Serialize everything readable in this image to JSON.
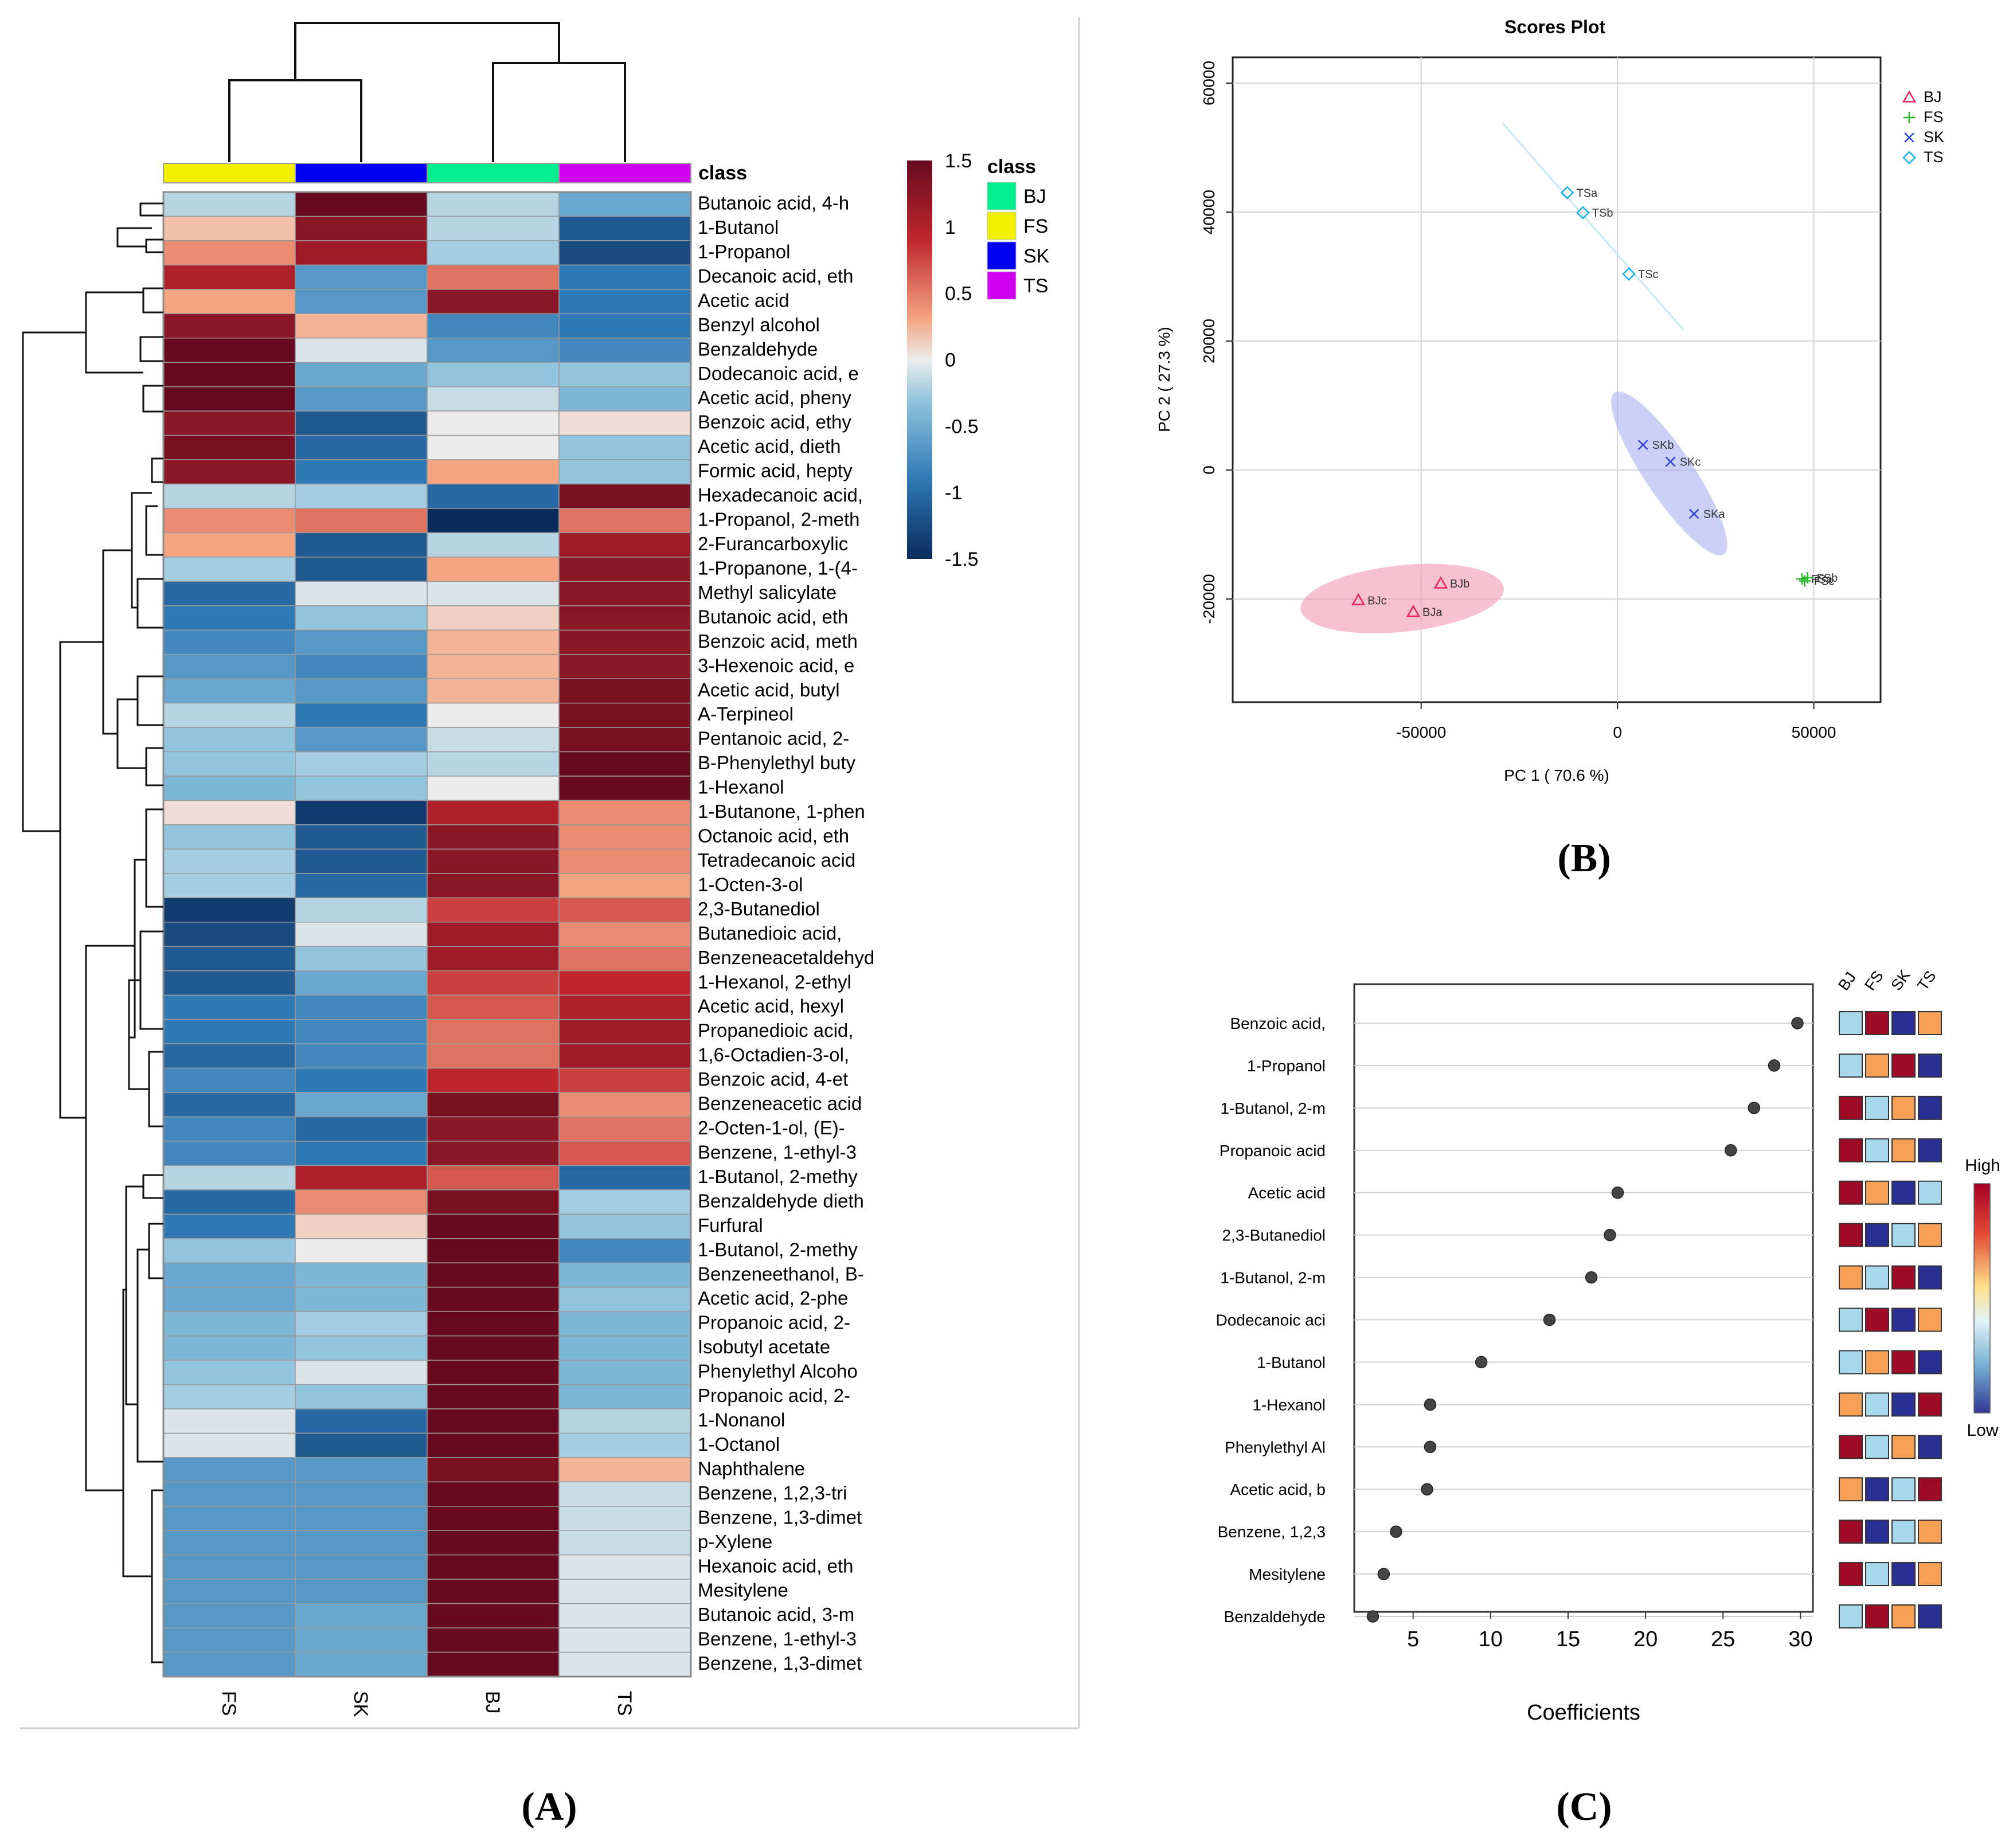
{
  "panel_labels": {
    "a": "(A)",
    "b": "(B)",
    "c": "(C)"
  },
  "colors": {
    "BJ": "#00f08f",
    "FS": "#f0f000",
    "SK": "#0000f0",
    "TS": "#d000f0",
    "pca_BJ": "#e8235a",
    "pca_FS": "#28b828",
    "pca_SK": "#3040d8",
    "pca_TS": "#18b0e8",
    "ellipse_BJ": "#f4a0b8",
    "ellipse_SK": "#a8b0f0",
    "lolli_high": "#9e0b26",
    "lolli_mid_high": "#f5a055",
    "lolli_mid_low": "#a8d8ec",
    "lolli_low": "#2a2f94",
    "dot": "#444444"
  },
  "chart_data": [
    {
      "type": "heatmap",
      "title": "",
      "columns": [
        "FS",
        "SK",
        "BJ",
        "TS"
      ],
      "class_label": "class",
      "class_legend": [
        {
          "name": "BJ",
          "color": "#00f08f"
        },
        {
          "name": "FS",
          "color": "#f0f000"
        },
        {
          "name": "SK",
          "color": "#0000f0"
        },
        {
          "name": "TS",
          "color": "#d000f0"
        }
      ],
      "scale_ticks": [
        "1.5",
        "1",
        "0.5",
        "0",
        "-0.5",
        "-1",
        "-1.5"
      ],
      "scale_range": [
        -1.5,
        1.5
      ],
      "rows": [
        "Butanoic acid, 4-h",
        "1-Butanol",
        "1-Propanol",
        "Decanoic acid, eth",
        "Acetic acid",
        "Benzyl alcohol",
        "Benzaldehyde",
        "Dodecanoic acid, e",
        "Acetic acid, pheny",
        "Benzoic acid, ethy",
        "Acetic acid, dieth",
        "Formic acid, hepty",
        "Hexadecanoic acid,",
        "1-Propanol, 2-meth",
        "2-Furancarboxylic",
        "1-Propanone, 1-(4-",
        "Methyl salicylate",
        "Butanoic acid, eth",
        "Benzoic acid, meth",
        "3-Hexenoic acid, e",
        "Acetic acid, butyl",
        "A-Terpineol",
        "Pentanoic acid, 2-",
        "B-Phenylethyl buty",
        "1-Hexanol",
        "1-Butanone, 1-phen",
        "Octanoic acid, eth",
        "Tetradecanoic acid",
        "1-Octen-3-ol",
        "2,3-Butanediol",
        "Butanedioic acid,",
        "Benzeneacetaldehyd",
        "1-Hexanol, 2-ethyl",
        "Acetic acid, hexyl",
        "Propanedioic acid,",
        "1,6-Octadien-3-ol,",
        "Benzoic acid, 4-et",
        "Benzeneacetic acid",
        "2-Octen-1-ol, (E)-",
        "Benzene, 1-ethyl-3",
        "1-Butanol, 2-methy",
        "Benzaldehyde dieth",
        "Furfural",
        "1-Butanol, 2-methy",
        "Benzeneethanol, B-",
        "Acetic acid, 2-phe",
        "Propanoic acid, 2-",
        "Isobutyl acetate",
        "Phenylethyl Alcoho",
        "Propanoic acid, 2-",
        "1-Nonanol",
        "1-Octanol",
        "Naphthalene",
        "Benzene, 1,2,3-tri",
        "Benzene, 1,3-dimet",
        "p-Xylene",
        "Hexanoic acid, eth",
        "Mesitylene",
        "Butanoic acid, 3-m",
        "Benzene, 1-ethyl-3",
        "Benzene, 1,3-dimet"
      ],
      "values": [
        [
          -0.3,
          1.5,
          -0.3,
          -0.7
        ],
        [
          0.3,
          1.3,
          -0.3,
          -1.2
        ],
        [
          0.6,
          1.2,
          -0.4,
          -1.3
        ],
        [
          1.1,
          -0.8,
          0.7,
          -1.0
        ],
        [
          0.5,
          -0.8,
          1.3,
          -1.0
        ],
        [
          1.3,
          0.4,
          -0.9,
          -1.0
        ],
        [
          1.5,
          -0.1,
          -0.8,
          -0.9
        ],
        [
          1.5,
          -0.7,
          -0.5,
          -0.5
        ],
        [
          1.5,
          -0.8,
          -0.2,
          -0.6
        ],
        [
          1.3,
          -1.2,
          0.0,
          0.1
        ],
        [
          1.4,
          -1.1,
          0.0,
          -0.5
        ],
        [
          1.3,
          -1.0,
          0.5,
          -0.5
        ],
        [
          -0.3,
          -0.4,
          -1.1,
          1.4
        ],
        [
          0.6,
          0.7,
          -1.5,
          0.7
        ],
        [
          0.5,
          -1.2,
          -0.3,
          1.2
        ],
        [
          -0.4,
          -1.2,
          0.5,
          1.3
        ],
        [
          -1.1,
          -0.1,
          -0.1,
          1.3
        ],
        [
          -1.0,
          -0.5,
          0.2,
          1.3
        ],
        [
          -0.9,
          -0.8,
          0.4,
          1.3
        ],
        [
          -0.8,
          -0.9,
          0.4,
          1.3
        ],
        [
          -0.7,
          -0.8,
          0.4,
          1.4
        ],
        [
          -0.3,
          -1.0,
          0.0,
          1.4
        ],
        [
          -0.5,
          -0.8,
          -0.2,
          1.4
        ],
        [
          -0.5,
          -0.4,
          -0.3,
          1.5
        ],
        [
          -0.6,
          -0.5,
          0.0,
          1.5
        ],
        [
          0.1,
          -1.4,
          1.1,
          0.6
        ],
        [
          -0.5,
          -1.2,
          1.3,
          0.6
        ],
        [
          -0.4,
          -1.2,
          1.3,
          0.6
        ],
        [
          -0.4,
          -1.1,
          1.3,
          0.5
        ],
        [
          -1.4,
          -0.3,
          0.9,
          0.8
        ],
        [
          -1.3,
          -0.1,
          1.2,
          0.6
        ],
        [
          -1.2,
          -0.5,
          1.2,
          0.7
        ],
        [
          -1.2,
          -0.7,
          0.9,
          1.0
        ],
        [
          -1.0,
          -0.9,
          0.8,
          1.1
        ],
        [
          -1.0,
          -0.9,
          0.7,
          1.2
        ],
        [
          -1.1,
          -0.9,
          0.7,
          1.2
        ],
        [
          -0.9,
          -1.0,
          1.0,
          0.9
        ],
        [
          -1.1,
          -0.7,
          1.4,
          0.6
        ],
        [
          -0.9,
          -1.1,
          1.3,
          0.7
        ],
        [
          -0.9,
          -1.0,
          1.3,
          0.8
        ],
        [
          -0.3,
          1.1,
          0.8,
          -1.1
        ],
        [
          -1.1,
          0.6,
          1.4,
          -0.4
        ],
        [
          -1.0,
          0.2,
          1.5,
          -0.5
        ],
        [
          -0.5,
          0.0,
          1.5,
          -0.9
        ],
        [
          -0.7,
          -0.6,
          1.5,
          -0.6
        ],
        [
          -0.7,
          -0.6,
          1.5,
          -0.5
        ],
        [
          -0.6,
          -0.4,
          1.5,
          -0.6
        ],
        [
          -0.6,
          -0.5,
          1.5,
          -0.6
        ],
        [
          -0.5,
          -0.1,
          1.5,
          -0.6
        ],
        [
          -0.4,
          -0.5,
          1.5,
          -0.6
        ],
        [
          -0.1,
          -1.1,
          1.5,
          -0.3
        ],
        [
          -0.1,
          -1.2,
          1.5,
          -0.4
        ],
        [
          -0.8,
          -0.8,
          1.4,
          0.4
        ],
        [
          -0.8,
          -0.8,
          1.5,
          -0.2
        ],
        [
          -0.8,
          -0.8,
          1.5,
          -0.2
        ],
        [
          -0.8,
          -0.8,
          1.5,
          -0.2
        ],
        [
          -0.8,
          -0.8,
          1.5,
          -0.1
        ],
        [
          -0.8,
          -0.8,
          1.5,
          -0.1
        ],
        [
          -0.8,
          -0.7,
          1.5,
          -0.1
        ],
        [
          -0.8,
          -0.7,
          1.5,
          -0.1
        ],
        [
          -0.8,
          -0.7,
          1.5,
          -0.1
        ]
      ]
    },
    {
      "type": "scatter",
      "title": "Scores Plot",
      "xlabel": "PC 1 ( 70.6 %)",
      "ylabel": "PC 2 ( 27.3 %)",
      "xlim": [
        -98000,
        67000
      ],
      "ylim": [
        -36000,
        64000
      ],
      "x_ticks": [
        -50000,
        0,
        50000
      ],
      "x_tick_labels": [
        "-50000",
        "0",
        "50000"
      ],
      "y_ticks": [
        -20000,
        0,
        20000,
        40000,
        60000
      ],
      "y_tick_labels": [
        "-20000",
        "0",
        "20000",
        "40000",
        "60000"
      ],
      "legend": [
        {
          "name": "BJ",
          "marker": "triangle",
          "color": "#e8235a"
        },
        {
          "name": "FS",
          "marker": "plus",
          "color": "#28b828"
        },
        {
          "name": "SK",
          "marker": "x",
          "color": "#3040d8"
        },
        {
          "name": "TS",
          "marker": "diamond",
          "color": "#18b0e8"
        }
      ],
      "points": [
        {
          "label": "BJa",
          "group": "BJ",
          "x": -52000,
          "y": -22000
        },
        {
          "label": "BJb",
          "group": "BJ",
          "x": -45000,
          "y": -17600
        },
        {
          "label": "BJc",
          "group": "BJ",
          "x": -66000,
          "y": -20200
        },
        {
          "label": "FSa",
          "group": "FS",
          "x": 47000,
          "y": -16900
        },
        {
          "label": "FSb",
          "group": "FS",
          "x": 48400,
          "y": -16700
        },
        {
          "label": "FSc",
          "group": "FS",
          "x": 47700,
          "y": -17200
        },
        {
          "label": "SKa",
          "group": "SK",
          "x": 19500,
          "y": -6800
        },
        {
          "label": "SKb",
          "group": "SK",
          "x": 6500,
          "y": 3900
        },
        {
          "label": "SKc",
          "group": "SK",
          "x": 13500,
          "y": 1300
        },
        {
          "label": "TSa",
          "group": "TS",
          "x": -12800,
          "y": 43000
        },
        {
          "label": "TSb",
          "group": "TS",
          "x": -8800,
          "y": 39900
        },
        {
          "label": "TSc",
          "group": "TS",
          "x": 2900,
          "y": 30400
        }
      ]
    },
    {
      "type": "scatter",
      "subtype": "lollipop",
      "xlabel": "Coefficients",
      "xlim": [
        1.2,
        30.8
      ],
      "x_ticks": [
        5,
        10,
        15,
        20,
        25,
        30
      ],
      "x_tick_labels": [
        "5",
        "10",
        "15",
        "20",
        "25",
        "30"
      ],
      "group_columns": [
        "BJ",
        "FS",
        "SK",
        "TS"
      ],
      "gradient_high": "High",
      "gradient_low": "Low",
      "rows": [
        {
          "label": "Benzoic acid,",
          "value": 29.8,
          "levels": [
            2,
            4,
            1,
            3
          ]
        },
        {
          "label": "1-Propanol",
          "value": 28.3,
          "levels": [
            2,
            3,
            4,
            1
          ]
        },
        {
          "label": "1-Butanol, 2-m",
          "value": 27.0,
          "levels": [
            4,
            2,
            3,
            1
          ]
        },
        {
          "label": "Propanoic acid",
          "value": 25.5,
          "levels": [
            4,
            2,
            3,
            1
          ]
        },
        {
          "label": "Acetic acid",
          "value": 18.2,
          "levels": [
            4,
            3,
            1,
            2
          ]
        },
        {
          "label": "2,3-Butanediol",
          "value": 17.7,
          "levels": [
            4,
            1,
            2,
            3
          ]
        },
        {
          "label": "1-Butanol, 2-m",
          "value": 16.5,
          "levels": [
            3,
            2,
            4,
            1
          ]
        },
        {
          "label": "Dodecanoic aci",
          "value": 13.8,
          "levels": [
            2,
            4,
            1,
            3
          ]
        },
        {
          "label": "1-Butanol",
          "value": 9.4,
          "levels": [
            2,
            3,
            4,
            1
          ]
        },
        {
          "label": "1-Hexanol",
          "value": 6.1,
          "levels": [
            3,
            2,
            1,
            4
          ]
        },
        {
          "label": "Phenylethyl Al",
          "value": 6.1,
          "levels": [
            4,
            2,
            3,
            1
          ]
        },
        {
          "label": "Acetic acid, b",
          "value": 5.9,
          "levels": [
            3,
            1,
            2,
            4
          ]
        },
        {
          "label": "Benzene, 1,2,3",
          "value": 3.9,
          "levels": [
            4,
            1,
            2,
            3
          ]
        },
        {
          "label": "Mesitylene",
          "value": 3.1,
          "levels": [
            4,
            2,
            1,
            3
          ]
        },
        {
          "label": "Benzaldehyde",
          "value": 2.4,
          "levels": [
            2,
            4,
            3,
            1
          ]
        }
      ]
    }
  ]
}
